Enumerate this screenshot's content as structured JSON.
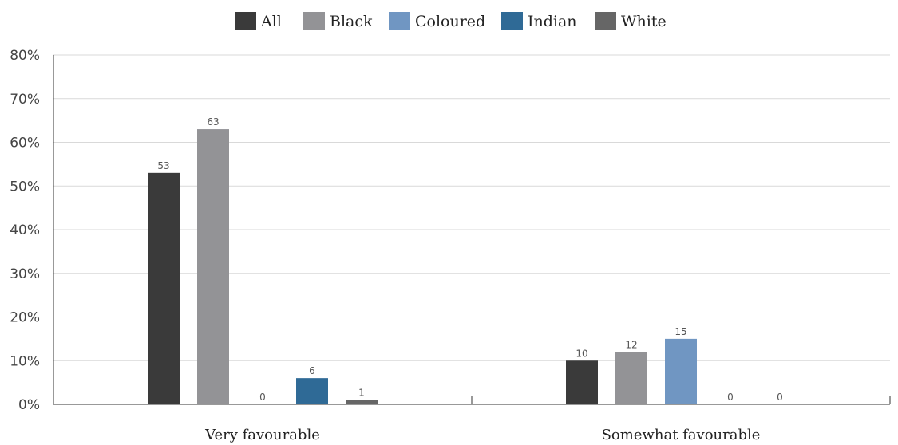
{
  "chart_data": {
    "type": "bar",
    "title": "",
    "xlabel": "",
    "ylabel": "",
    "ylim": [
      0,
      80
    ],
    "yticks": [
      0,
      10,
      20,
      30,
      40,
      50,
      60,
      70,
      80
    ],
    "ytick_format": "{v}%",
    "grid": true,
    "legend_position": "top-center",
    "categories": [
      "Very favourable",
      "Somewhat favourable"
    ],
    "series": [
      {
        "name": "All",
        "color": "#3a3a3a",
        "values": [
          53,
          10
        ]
      },
      {
        "name": "Black",
        "color": "#939396",
        "values": [
          63,
          12
        ]
      },
      {
        "name": "Coloured",
        "color": "#7096c2",
        "values": [
          0,
          15
        ]
      },
      {
        "name": "Indian",
        "color": "#2f6a96",
        "values": [
          6,
          0
        ]
      },
      {
        "name": "White",
        "color": "#666666",
        "values": [
          1,
          0
        ]
      }
    ],
    "data_labels": [
      [
        "53",
        "63",
        "0",
        "6",
        "1"
      ],
      [
        "10",
        "12",
        "15",
        "0",
        "0"
      ]
    ]
  }
}
